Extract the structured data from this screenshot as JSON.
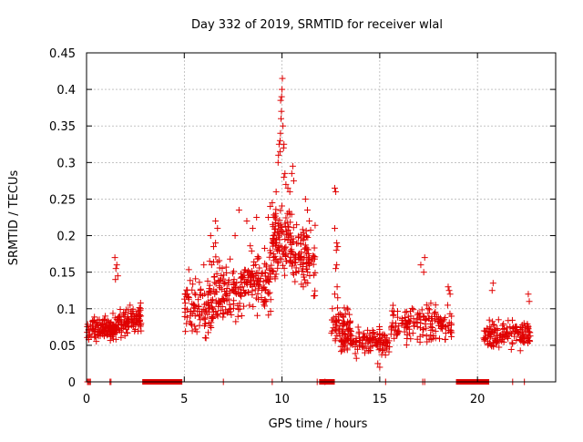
{
  "chart_data": {
    "type": "scatter",
    "title": "Day 332 of 2019, SRMTID for receiver wlal",
    "xlabel": "GPS time / hours",
    "ylabel": "SRMTID / TECUs",
    "xlim": [
      0,
      24
    ],
    "ylim": [
      0,
      0.45
    ],
    "x_ticks": [
      0,
      5,
      10,
      15,
      20
    ],
    "x_tick_labels": [
      "0",
      "5",
      "10",
      "15",
      "20"
    ],
    "y_ticks": [
      0,
      0.05,
      0.1,
      0.15,
      0.2,
      0.25,
      0.3,
      0.35,
      0.4,
      0.45
    ],
    "y_tick_labels": [
      "0",
      "0.05",
      "0.1",
      "0.15",
      "0.2",
      "0.25",
      "0.3",
      "0.35",
      "0.4",
      "0.45"
    ],
    "grid": true,
    "marker": "+",
    "color": "#e00000",
    "series": [
      {
        "name": "SRMTID",
        "segments": [
          {
            "start": 0.0,
            "end": 1.5,
            "n": 110,
            "base": 0.072,
            "spread": 0.022
          },
          {
            "start": 1.0,
            "end": 1.8,
            "n": 40,
            "base": 0.075,
            "spread": 0.02
          },
          {
            "start": 1.5,
            "end": 2.8,
            "n": 90,
            "base": 0.085,
            "spread": 0.025
          },
          {
            "start": 5.0,
            "end": 6.5,
            "n": 110,
            "base": 0.105,
            "spread": 0.045
          },
          {
            "start": 6.5,
            "end": 8.0,
            "n": 110,
            "base": 0.125,
            "spread": 0.05
          },
          {
            "start": 8.0,
            "end": 9.5,
            "n": 120,
            "base": 0.14,
            "spread": 0.05
          },
          {
            "start": 9.5,
            "end": 10.5,
            "n": 110,
            "base": 0.19,
            "spread": 0.06
          },
          {
            "start": 10.5,
            "end": 11.7,
            "n": 100,
            "base": 0.17,
            "spread": 0.05
          },
          {
            "start": 12.5,
            "end": 13.5,
            "n": 60,
            "base": 0.08,
            "spread": 0.03
          },
          {
            "start": 13.0,
            "end": 15.5,
            "n": 150,
            "base": 0.055,
            "spread": 0.02
          },
          {
            "start": 15.5,
            "end": 18.7,
            "n": 160,
            "base": 0.08,
            "spread": 0.03
          },
          {
            "start": 20.3,
            "end": 22.7,
            "n": 150,
            "base": 0.065,
            "spread": 0.022
          }
        ],
        "extra_points": [
          {
            "x": 1.45,
            "y": 0.17
          },
          {
            "x": 1.55,
            "y": 0.16
          },
          {
            "x": 1.5,
            "y": 0.155
          },
          {
            "x": 1.6,
            "y": 0.145
          },
          {
            "x": 1.48,
            "y": 0.14
          },
          {
            "x": 6.3,
            "y": 0.165
          },
          {
            "x": 6.0,
            "y": 0.16
          },
          {
            "x": 6.4,
            "y": 0.16
          },
          {
            "x": 6.5,
            "y": 0.185
          },
          {
            "x": 6.6,
            "y": 0.19
          },
          {
            "x": 6.35,
            "y": 0.2
          },
          {
            "x": 6.6,
            "y": 0.22
          },
          {
            "x": 6.7,
            "y": 0.21
          },
          {
            "x": 7.6,
            "y": 0.2
          },
          {
            "x": 7.8,
            "y": 0.235
          },
          {
            "x": 8.2,
            "y": 0.22
          },
          {
            "x": 8.5,
            "y": 0.21
          },
          {
            "x": 8.7,
            "y": 0.225
          },
          {
            "x": 9.3,
            "y": 0.225
          },
          {
            "x": 9.4,
            "y": 0.24
          },
          {
            "x": 9.6,
            "y": 0.225
          },
          {
            "x": 9.5,
            "y": 0.245
          },
          {
            "x": 9.7,
            "y": 0.26
          },
          {
            "x": 9.8,
            "y": 0.3
          },
          {
            "x": 9.82,
            "y": 0.31
          },
          {
            "x": 9.85,
            "y": 0.325
          },
          {
            "x": 9.9,
            "y": 0.33
          },
          {
            "x": 9.92,
            "y": 0.34
          },
          {
            "x": 9.95,
            "y": 0.36
          },
          {
            "x": 9.97,
            "y": 0.37
          },
          {
            "x": 9.93,
            "y": 0.385
          },
          {
            "x": 10.0,
            "y": 0.4
          },
          {
            "x": 10.02,
            "y": 0.415
          },
          {
            "x": 9.98,
            "y": 0.39
          },
          {
            "x": 10.05,
            "y": 0.35
          },
          {
            "x": 10.08,
            "y": 0.32
          },
          {
            "x": 10.1,
            "y": 0.325
          },
          {
            "x": 9.9,
            "y": 0.315
          },
          {
            "x": 10.1,
            "y": 0.28
          },
          {
            "x": 10.15,
            "y": 0.285
          },
          {
            "x": 10.2,
            "y": 0.27
          },
          {
            "x": 10.3,
            "y": 0.265
          },
          {
            "x": 10.4,
            "y": 0.26
          },
          {
            "x": 10.5,
            "y": 0.285
          },
          {
            "x": 10.55,
            "y": 0.295
          },
          {
            "x": 10.6,
            "y": 0.275
          },
          {
            "x": 11.2,
            "y": 0.25
          },
          {
            "x": 11.4,
            "y": 0.22
          },
          {
            "x": 11.3,
            "y": 0.235
          },
          {
            "x": 12.7,
            "y": 0.265
          },
          {
            "x": 12.75,
            "y": 0.26
          },
          {
            "x": 12.7,
            "y": 0.21
          },
          {
            "x": 12.8,
            "y": 0.19
          },
          {
            "x": 12.85,
            "y": 0.185
          },
          {
            "x": 12.78,
            "y": 0.18
          },
          {
            "x": 12.8,
            "y": 0.16
          },
          {
            "x": 12.75,
            "y": 0.155
          },
          {
            "x": 12.82,
            "y": 0.13
          },
          {
            "x": 12.7,
            "y": 0.12
          },
          {
            "x": 12.85,
            "y": 0.115
          },
          {
            "x": 17.1,
            "y": 0.16
          },
          {
            "x": 17.3,
            "y": 0.17
          },
          {
            "x": 17.25,
            "y": 0.15
          },
          {
            "x": 18.5,
            "y": 0.13
          },
          {
            "x": 18.6,
            "y": 0.12
          },
          {
            "x": 18.55,
            "y": 0.125
          },
          {
            "x": 20.8,
            "y": 0.135
          },
          {
            "x": 20.75,
            "y": 0.125
          },
          {
            "x": 22.6,
            "y": 0.12
          },
          {
            "x": 22.65,
            "y": 0.11
          },
          {
            "x": 15.0,
            "y": 0.02
          },
          {
            "x": 14.9,
            "y": 0.025
          }
        ]
      },
      {
        "name": "zero-level markers",
        "points_x": [
          0.05,
          0.1,
          0.15,
          0.2,
          1.2,
          1.25,
          7.0,
          9.5,
          11.8,
          12.2,
          15.3,
          17.2,
          17.3,
          21.8,
          22.4
        ],
        "bands": [
          [
            2.85,
            4.9
          ],
          [
            11.9,
            12.7
          ],
          [
            18.9,
            20.6
          ]
        ],
        "y": 0
      }
    ]
  }
}
